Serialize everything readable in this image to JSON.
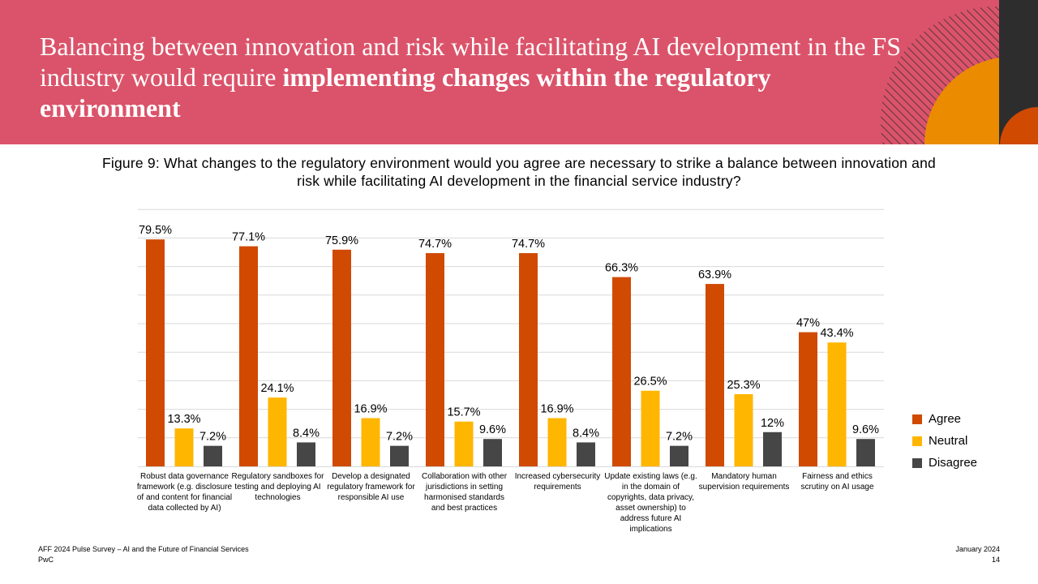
{
  "header": {
    "title_plain": "Balancing between innovation and risk while facilitating AI development in the FS industry would require ",
    "title_bold": "implementing changes within the regulatory environment"
  },
  "figure": {
    "caption": "Figure 9: What changes to the regulatory environment would you agree are necessary to strike a balance between innovation and risk while facilitating AI development in the financial service industry?"
  },
  "colors": {
    "header_bg": "#db536a",
    "agree": "#d04a02",
    "neutral": "#ffb600",
    "disagree": "#464646",
    "deco_orange": "#eb8c00",
    "deco_dark": "#2d2d2d"
  },
  "chart_data": {
    "type": "bar",
    "categories": [
      "Robust data governance framework (e.g. disclosure of and content for financial data collected by AI)",
      "Regulatory sandboxes for testing and deploying AI technologies",
      "Develop a designated regulatory framework for responsible AI use",
      "Collaboration with other jurisdictions in setting harmonised standards and best practices",
      "Increased cybersecurity requirements",
      "Update existing laws (e.g. in the domain of copyrights, data privacy, asset ownership) to address future AI implications",
      "Mandatory human supervision requirements",
      "Fairness and ethics scrutiny on AI usage"
    ],
    "series": [
      {
        "name": "Agree",
        "values": [
          79.5,
          77.1,
          75.9,
          74.7,
          74.7,
          66.3,
          63.9,
          47
        ]
      },
      {
        "name": "Neutral",
        "values": [
          13.3,
          24.1,
          16.9,
          15.7,
          16.9,
          26.5,
          25.3,
          43.4
        ]
      },
      {
        "name": "Disagree",
        "values": [
          7.2,
          8.4,
          7.2,
          9.6,
          8.4,
          7.2,
          12,
          9.6
        ]
      }
    ],
    "data_labels": [
      [
        "79.5%",
        "77.1%",
        "75.9%",
        "74.7%",
        "74.7%",
        "66.3%",
        "63.9%",
        "47%"
      ],
      [
        "13.3%",
        "24.1%",
        "16.9%",
        "15.7%",
        "16.9%",
        "26.5%",
        "25.3%",
        "43.4%"
      ],
      [
        "7.2%",
        "8.4%",
        "7.2%",
        "9.6%",
        "8.4%",
        "7.2%",
        "12%",
        "9.6%"
      ]
    ],
    "ylim": [
      0,
      90
    ],
    "grid": true,
    "legend": "right"
  },
  "footer": {
    "survey": "AFF 2024 Pulse Survey – AI and the Future of Financial Services",
    "company": "PwC",
    "date": "January 2024",
    "page": "14"
  }
}
